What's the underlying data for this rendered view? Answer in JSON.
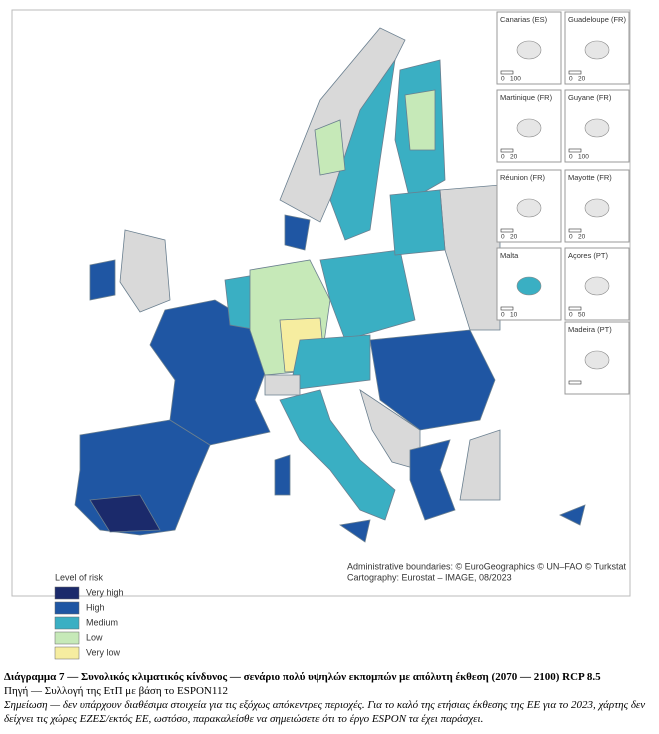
{
  "insets": [
    {
      "label": "Canarias (ES)",
      "scale": [
        0,
        100
      ]
    },
    {
      "label": "Guadeloupe (FR)",
      "scale": [
        0,
        20
      ]
    },
    {
      "label": "Martinique (FR)",
      "scale": [
        0,
        20
      ]
    },
    {
      "label": "Guyane (FR)",
      "scale": [
        0,
        100
      ]
    },
    {
      "label": "Réunion (FR)",
      "scale": [
        0,
        20
      ]
    },
    {
      "label": "Mayotte (FR)",
      "scale": [
        0,
        20
      ]
    },
    {
      "label": "Malta",
      "scale": [
        0,
        10
      ]
    },
    {
      "label": "Açores (PT)",
      "scale": [
        0,
        50
      ]
    },
    {
      "label": "Madeira (PT)"
    }
  ],
  "credits": [
    "Administrative boundaries: © EuroGeographics © UN–FAO © Turkstat",
    "Cartography: Eurostat – IMAGE, 08/2023"
  ],
  "legend": {
    "title": "Level of risk",
    "items": [
      {
        "label": "Very high",
        "color": "#1b2a6b"
      },
      {
        "label": "High",
        "color": "#1f56a3"
      },
      {
        "label": "Medium",
        "color": "#3aafc3"
      },
      {
        "label": "Low",
        "color": "#c6e9b8"
      },
      {
        "label": "Very low",
        "color": "#f6eda0"
      }
    ]
  },
  "caption": {
    "title": "Διάγραμμα 7 — Συνολικός κλιματικός κίνδυνος — σενάριο πολύ υψηλών εκπομπών με απόλυτη έκθεση (2070 — 2100) RCP 8.5",
    "source": "Πηγή — Συλλογή της ΕτΠ με βάση το ESPON112",
    "note": "Σημείωση — δεν υπάρχουν διαθέσιμα στοιχεία για τις εξόχως απόκεντρες περιοχές. Για το καλό της ετήσιας έκθεσης της ΕΕ για το 2023, χάρτης δεν δείχνει τις χώρες ΕΖΕΣ/εκτός ΕΕ, ωστόσο, παρακαλείσθε να σημειώσετε ότι το έργο ESPON τα έχει παράσχει."
  }
}
